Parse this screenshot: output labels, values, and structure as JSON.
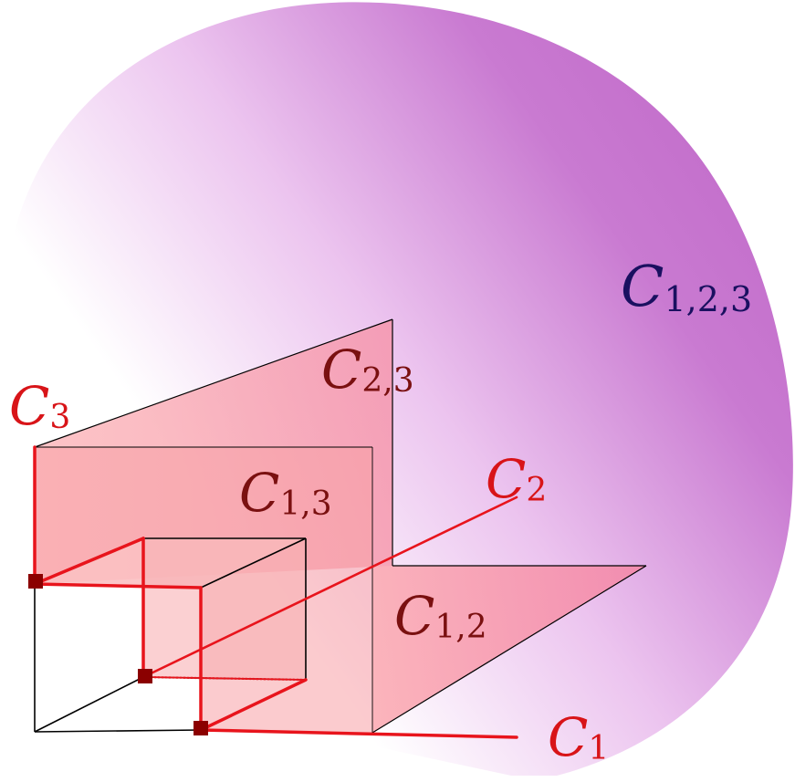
{
  "labels": {
    "c123": {
      "main": "C",
      "sub": "1,2,3"
    },
    "c23": {
      "main": "C",
      "sub": "2,3"
    },
    "c13": {
      "main": "C",
      "sub": "1,3"
    },
    "c12": {
      "main": "C",
      "sub": "1,2"
    },
    "c3": {
      "main": "C",
      "sub": "3"
    },
    "c2": {
      "main": "C",
      "sub": "2"
    },
    "c1": {
      "main": "C",
      "sub": "1"
    }
  },
  "colors": {
    "blob_dark": "#c470cc",
    "blob_light": "#ffffff",
    "plane_fill": "#f47a8c",
    "red_line": "#e8141c",
    "marker": "#8b0000",
    "label_dark_red": "#7a1010",
    "label_blue": "#1a1060",
    "label_red": "#d81418",
    "edge_black": "#000000"
  }
}
